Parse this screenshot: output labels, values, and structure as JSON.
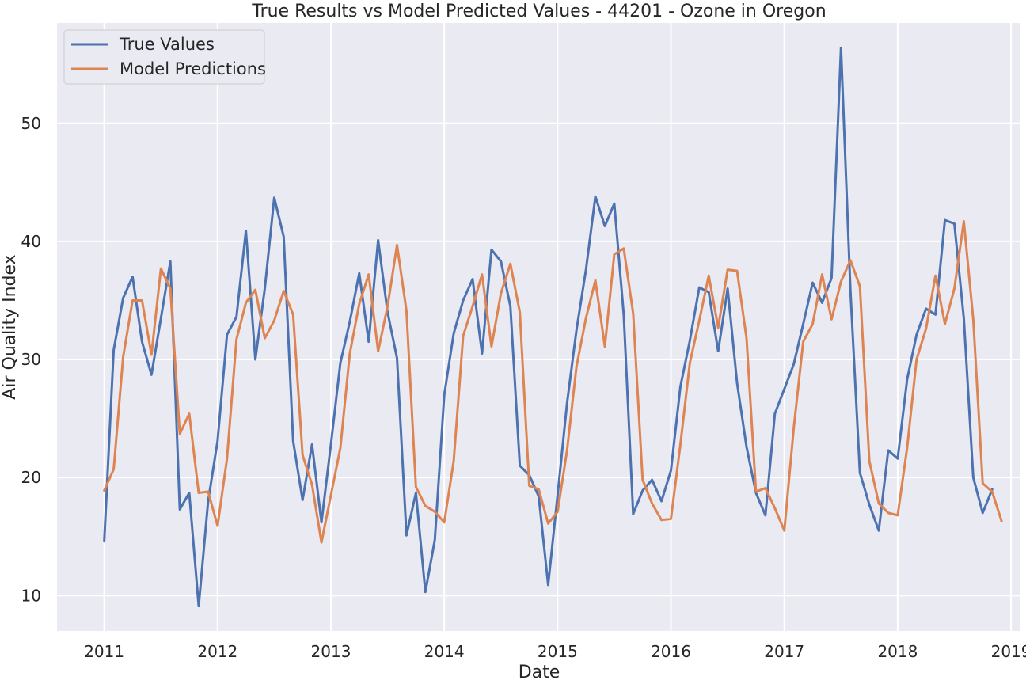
{
  "chart_data": {
    "type": "line",
    "title": "True Results vs Model Predicted Values - 44201 - Ozone in Oregon",
    "xlabel": "Date",
    "ylabel": "Air Quality Index",
    "x_start": "2011-01",
    "x_end": "2018-12",
    "x_ticks": [
      "2011",
      "2012",
      "2013",
      "2014",
      "2015",
      "2016",
      "2017",
      "2018",
      "2019"
    ],
    "y_ticks": [
      10,
      20,
      30,
      40,
      50
    ],
    "ylim": [
      7.0,
      58.5
    ],
    "xlim": [
      "2010-08",
      "2019-02"
    ],
    "grid": true,
    "legend_position": "top-left",
    "background": "#eaeaf2",
    "series": [
      {
        "name": "True Values",
        "color": "#4c72b0",
        "values": [
          14.6,
          30.8,
          35.2,
          37.0,
          31.5,
          28.7,
          33.5,
          38.3,
          17.3,
          18.7,
          9.1,
          18.0,
          23.1,
          32.1,
          33.6,
          40.9,
          30.0,
          36.0,
          43.7,
          40.4,
          23.1,
          18.1,
          22.8,
          16.2,
          22.8,
          29.7,
          33.2,
          37.3,
          31.5,
          40.1,
          34.0,
          30.1,
          15.1,
          18.7,
          10.3,
          14.7,
          27.0,
          32.2,
          35.0,
          36.8,
          30.5,
          39.3,
          38.3,
          34.5,
          21.0,
          20.2,
          18.4,
          10.9,
          18.5,
          26.3,
          32.5,
          37.6,
          43.8,
          41.3,
          43.2,
          33.8,
          16.9,
          18.9,
          19.8,
          18.0,
          20.6,
          27.7,
          31.6,
          36.1,
          35.7,
          30.7,
          36.0,
          28.0,
          22.6,
          18.7,
          16.8,
          25.4,
          27.5,
          29.6,
          33.0,
          36.5,
          34.8,
          36.9,
          56.4,
          35.8,
          20.4,
          17.7,
          15.5,
          22.3,
          21.6,
          28.3,
          32.1,
          34.3,
          33.8,
          41.8,
          41.5,
          33.5,
          20.0,
          17.0,
          19.0
        ]
      },
      {
        "name": "Model Predictions",
        "color": "#dd8452",
        "values": [
          18.9,
          20.7,
          30.2,
          35.0,
          35.0,
          30.4,
          37.7,
          36.0,
          23.7,
          25.4,
          18.7,
          18.8,
          15.9,
          21.6,
          31.7,
          34.8,
          35.9,
          31.8,
          33.3,
          35.8,
          33.8,
          21.9,
          19.4,
          14.5,
          18.5,
          22.5,
          30.5,
          34.7,
          37.2,
          30.7,
          34.5,
          39.7,
          34.1,
          19.2,
          17.6,
          17.1,
          16.2,
          21.4,
          32.0,
          34.5,
          37.2,
          31.1,
          35.6,
          38.1,
          34.0,
          19.3,
          19.0,
          16.1,
          17.1,
          22.3,
          29.4,
          33.5,
          36.7,
          31.1,
          38.9,
          39.4,
          33.9,
          19.8,
          17.8,
          16.4,
          16.5,
          22.8,
          29.7,
          33.3,
          37.1,
          32.7,
          37.6,
          37.5,
          31.8,
          18.8,
          19.1,
          17.4,
          15.5,
          24.2,
          31.5,
          33.0,
          37.2,
          33.4,
          36.6,
          38.4,
          36.2,
          21.4,
          17.8,
          17.0,
          16.8,
          22.5,
          30.0,
          32.6,
          37.1,
          33.0,
          36.0,
          41.7,
          33.4,
          19.5,
          18.8,
          16.3
        ]
      }
    ]
  }
}
